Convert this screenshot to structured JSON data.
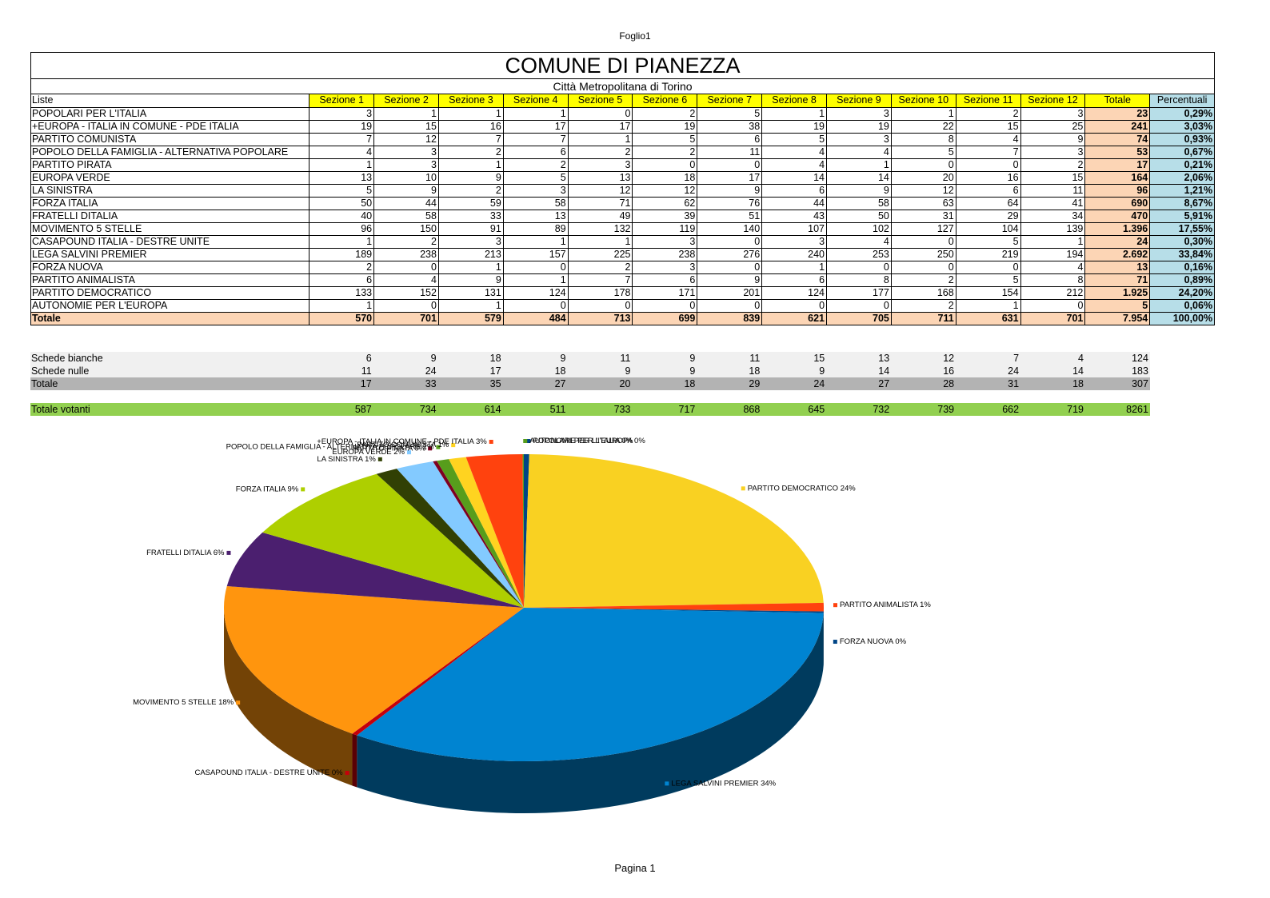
{
  "sheet_name": "Foglio1",
  "footer": "Pagina 1",
  "title": "COMUNE DI PIANEZZA",
  "subtitle": "Città Metropolitana di Torino",
  "table": {
    "headers": [
      "Liste",
      "Sezione 1",
      "Sezione 2",
      "Sezione 3",
      "Sezione 4",
      "Sezione 5",
      "Sezione 6",
      "Sezione 7",
      "Sezione 8",
      "Sezione 9",
      "Sezione 10",
      "Sezione 11",
      "Sezione 12",
      "Totale",
      "Percentuali"
    ],
    "rows": [
      {
        "name": "POPOLARI PER L'ITALIA",
        "values": [
          "3",
          "1",
          "1",
          "1",
          "0",
          "2",
          "5",
          "1",
          "3",
          "1",
          "2",
          "3"
        ],
        "total": "23",
        "pct": "0,29%"
      },
      {
        "name": "+EUROPA - ITALIA IN COMUNE - PDE ITALIA",
        "values": [
          "19",
          "15",
          "16",
          "17",
          "17",
          "19",
          "38",
          "19",
          "19",
          "22",
          "15",
          "25"
        ],
        "total": "241",
        "pct": "3,03%"
      },
      {
        "name": "PARTITO COMUNISTA",
        "values": [
          "7",
          "12",
          "7",
          "7",
          "1",
          "5",
          "6",
          "5",
          "3",
          "8",
          "4",
          "9"
        ],
        "total": "74",
        "pct": "0,93%"
      },
      {
        "name": "POPOLO DELLA FAMIGLIA - ALTERNATIVA POPOLARE",
        "values": [
          "4",
          "3",
          "2",
          "6",
          "2",
          "2",
          "11",
          "4",
          "4",
          "5",
          "7",
          "3"
        ],
        "total": "53",
        "pct": "0,67%"
      },
      {
        "name": "PARTITO PIRATA",
        "values": [
          "1",
          "3",
          "1",
          "2",
          "3",
          "0",
          "0",
          "4",
          "1",
          "0",
          "0",
          "2"
        ],
        "total": "17",
        "pct": "0,21%"
      },
      {
        "name": "EUROPA VERDE",
        "values": [
          "13",
          "10",
          "9",
          "5",
          "13",
          "18",
          "17",
          "14",
          "14",
          "20",
          "16",
          "15"
        ],
        "total": "164",
        "pct": "2,06%"
      },
      {
        "name": "LA SINISTRA",
        "values": [
          "5",
          "9",
          "2",
          "3",
          "12",
          "12",
          "9",
          "6",
          "9",
          "12",
          "6",
          "11"
        ],
        "total": "96",
        "pct": "1,21%"
      },
      {
        "name": "FORZA ITALIA",
        "values": [
          "50",
          "44",
          "59",
          "58",
          "71",
          "62",
          "76",
          "44",
          "58",
          "63",
          "64",
          "41"
        ],
        "total": "690",
        "pct": "8,67%"
      },
      {
        "name": "FRATELLI DITALIA",
        "values": [
          "40",
          "58",
          "33",
          "13",
          "49",
          "39",
          "51",
          "43",
          "50",
          "31",
          "29",
          "34"
        ],
        "total": "470",
        "pct": "5,91%"
      },
      {
        "name": "MOVIMENTO 5 STELLE",
        "values": [
          "96",
          "150",
          "91",
          "89",
          "132",
          "119",
          "140",
          "107",
          "102",
          "127",
          "104",
          "139"
        ],
        "total": "1.396",
        "pct": "17,55%"
      },
      {
        "name": "CASAPOUND ITALIA - DESTRE UNITE",
        "values": [
          "1",
          "2",
          "3",
          "1",
          "1",
          "3",
          "0",
          "3",
          "4",
          "0",
          "5",
          "1"
        ],
        "total": "24",
        "pct": "0,30%"
      },
      {
        "name": "LEGA SALVINI PREMIER",
        "values": [
          "189",
          "238",
          "213",
          "157",
          "225",
          "238",
          "276",
          "240",
          "253",
          "250",
          "219",
          "194"
        ],
        "total": "2.692",
        "pct": "33,84%"
      },
      {
        "name": "FORZA NUOVA",
        "values": [
          "2",
          "0",
          "1",
          "0",
          "2",
          "3",
          "0",
          "1",
          "0",
          "0",
          "0",
          "4"
        ],
        "total": "13",
        "pct": "0,16%"
      },
      {
        "name": "PARTITO ANIMALISTA",
        "values": [
          "6",
          "4",
          "9",
          "1",
          "7",
          "6",
          "9",
          "6",
          "8",
          "2",
          "5",
          "8"
        ],
        "total": "71",
        "pct": "0,89%"
      },
      {
        "name": "PARTITO DEMOCRATICO",
        "values": [
          "133",
          "152",
          "131",
          "124",
          "178",
          "171",
          "201",
          "124",
          "177",
          "168",
          "154",
          "212"
        ],
        "total": "1.925",
        "pct": "24,20%"
      },
      {
        "name": "AUTONOMIE PER L'EUROPA",
        "values": [
          "1",
          "0",
          "1",
          "0",
          "0",
          "0",
          "0",
          "0",
          "0",
          "2",
          "1",
          "0"
        ],
        "total": "5",
        "pct": "0,06%"
      }
    ],
    "total_row": {
      "name": "Totale",
      "values": [
        "570",
        "701",
        "579",
        "484",
        "713",
        "699",
        "839",
        "621",
        "705",
        "711",
        "631",
        "701"
      ],
      "total": "7.954",
      "pct": "100,00%"
    }
  },
  "extra_rows": [
    {
      "name": "Schede bianche",
      "values": [
        "6",
        "9",
        "18",
        "9",
        "11",
        "9",
        "11",
        "15",
        "13",
        "12",
        "7",
        "4"
      ],
      "total": "124",
      "bg": "light"
    },
    {
      "name": "Schede nulle",
      "values": [
        "11",
        "24",
        "17",
        "18",
        "9",
        "9",
        "18",
        "9",
        "14",
        "16",
        "24",
        "14"
      ],
      "total": "183",
      "bg": "light"
    },
    {
      "name": "Totale",
      "values": [
        "17",
        "33",
        "35",
        "27",
        "20",
        "18",
        "29",
        "24",
        "27",
        "28",
        "31",
        "18"
      ],
      "total": "307",
      "bg": "gray"
    },
    {
      "name": "Totale votanti",
      "values": [
        "587",
        "734",
        "614",
        "511",
        "733",
        "717",
        "868",
        "645",
        "732",
        "739",
        "662",
        "719"
      ],
      "total": "8261",
      "bg": "green"
    }
  ],
  "chart_data": {
    "type": "pie",
    "title": "",
    "slices": [
      {
        "label": "POPOLARI PER L'ITALIA 0%",
        "value": 23,
        "color": "#004586"
      },
      {
        "label": "PARTITO DEMOCRATICO 24%",
        "value": 1925,
        "color": "#f9d122"
      },
      {
        "label": "PARTITO ANIMALISTA 1%",
        "value": 71,
        "color": "#ff420e"
      },
      {
        "label": "FORZA NUOVA 0%",
        "value": 13,
        "color": "#004586"
      },
      {
        "label": "LEGA SALVINI PREMIER 34%",
        "value": 2692,
        "color": "#0084d1"
      },
      {
        "label": "CASAPOUND ITALIA - DESTRE UNITE 0%",
        "value": 24,
        "color": "#c5000b"
      },
      {
        "label": "MOVIMENTO 5 STELLE 18%",
        "value": 1396,
        "color": "#ff950e"
      },
      {
        "label": "FRATELLI DITALIA 6%",
        "value": 470,
        "color": "#4b1f6f"
      },
      {
        "label": "FORZA ITALIA 9%",
        "value": 690,
        "color": "#aecf00"
      },
      {
        "label": "LA SINISTRA 1%",
        "value": 96,
        "color": "#314004"
      },
      {
        "label": "EUROPA VERDE 2%",
        "value": 164,
        "color": "#83caff"
      },
      {
        "label": "PARTITO PIRATA 0%",
        "value": 17,
        "color": "#7e0021"
      },
      {
        "label": "POPOLO DELLA FAMIGLIA - ALTERNATIVA POPOLARE 1%",
        "value": 53,
        "color": "#579d1c"
      },
      {
        "label": "PARTITO COMUNISTA 1%",
        "value": 74,
        "color": "#ffd320"
      },
      {
        "label": "+EUROPA - ITALIA IN COMUNE - PDE ITALIA 3%",
        "value": 241,
        "color": "#ff420e"
      },
      {
        "label": "AUTONOMIE PER L'EUROPA 0%",
        "value": 5,
        "color": "#579d1c"
      }
    ]
  }
}
